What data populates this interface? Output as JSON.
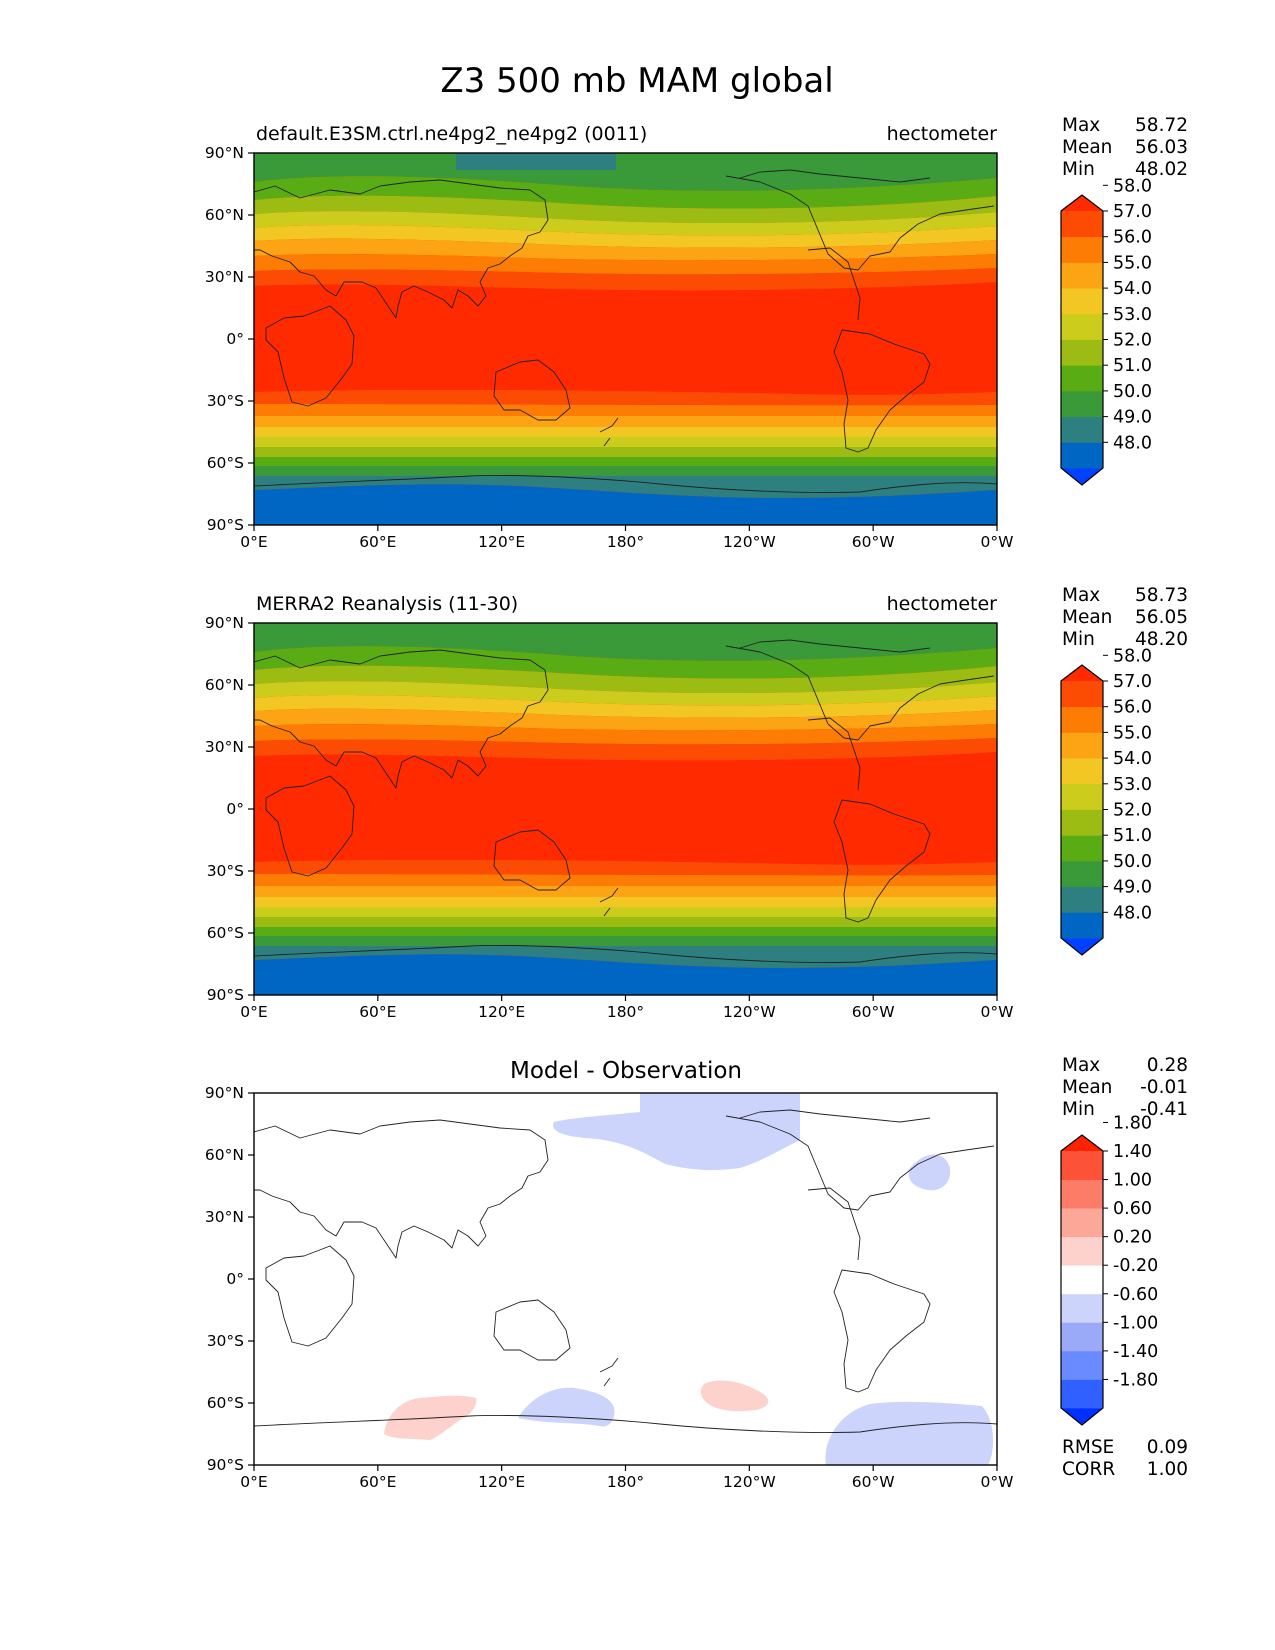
{
  "figure": {
    "title": "Z3 500 mb MAM global"
  },
  "axes": {
    "x_ticks": [
      "0°E",
      "60°E",
      "120°E",
      "180°",
      "120°W",
      "60°W",
      "0°W"
    ],
    "y_ticks": [
      "90°N",
      "60°N",
      "30°N",
      "0°",
      "30°S",
      "60°S",
      "90°S"
    ]
  },
  "panels": [
    {
      "id": "test",
      "left_title": "default.E3SM.ctrl.ne4pg2_ne4pg2 (0011)",
      "right_title": "hectometer",
      "center_title": "",
      "stats": [
        {
          "label": "Max",
          "value": "58.72"
        },
        {
          "label": "Mean",
          "value": "56.03"
        },
        {
          "label": "Min",
          "value": "48.02"
        }
      ],
      "colorbar": {
        "colors": [
          "#0040ff",
          "#0066c4",
          "#2e8080",
          "#3a9a3a",
          "#5aac14",
          "#9cbc14",
          "#cccc1c",
          "#f2c623",
          "#fca414",
          "#fc7c04",
          "#fc4c04",
          "#ff2a00"
        ],
        "labels": [
          "48.0",
          "49.0",
          "50.0",
          "51.0",
          "52.0",
          "53.0",
          "54.0",
          "55.0",
          "56.0",
          "57.0",
          "58.0"
        ]
      },
      "extra_stats": []
    },
    {
      "id": "reference",
      "left_title": "MERRA2 Reanalysis (11-30)",
      "right_title": "hectometer",
      "center_title": "",
      "stats": [
        {
          "label": "Max",
          "value": "58.73"
        },
        {
          "label": "Mean",
          "value": "56.05"
        },
        {
          "label": "Min",
          "value": "48.20"
        }
      ],
      "colorbar": {
        "colors": [
          "#0040ff",
          "#0066c4",
          "#2e8080",
          "#3a9a3a",
          "#5aac14",
          "#9cbc14",
          "#cccc1c",
          "#f2c623",
          "#fca414",
          "#fc7c04",
          "#fc4c04",
          "#ff2a00"
        ],
        "labels": [
          "48.0",
          "49.0",
          "50.0",
          "51.0",
          "52.0",
          "53.0",
          "54.0",
          "55.0",
          "56.0",
          "57.0",
          "58.0"
        ]
      },
      "extra_stats": []
    },
    {
      "id": "difference",
      "left_title": "",
      "right_title": "",
      "center_title": "Model - Observation",
      "stats": [
        {
          "label": "Max",
          "value": "0.28"
        },
        {
          "label": "Mean",
          "value": "-0.01"
        },
        {
          "label": "Min",
          "value": "-0.41"
        }
      ],
      "colorbar": {
        "colors": [
          "#0030ff",
          "#3060ff",
          "#6a8aff",
          "#9aaaf8",
          "#ccd4fc",
          "#ffffff",
          "#fdd2cc",
          "#fca898",
          "#fc7c68",
          "#fc5238",
          "#ff2200"
        ],
        "labels": [
          "-1.80",
          "-1.40",
          "-1.00",
          "-0.60",
          "-0.20",
          "0.20",
          "0.60",
          "1.00",
          "1.40",
          "1.80"
        ]
      },
      "extra_stats": [
        {
          "label": "RMSE",
          "value": "0.09"
        },
        {
          "label": "CORR",
          "value": "1.00"
        }
      ]
    }
  ]
}
